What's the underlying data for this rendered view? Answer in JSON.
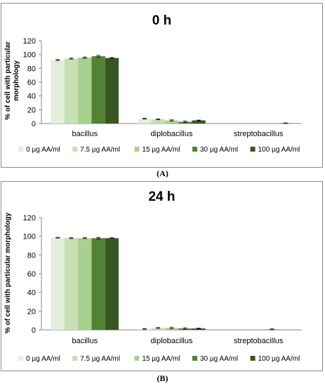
{
  "chart_data": [
    {
      "type": "bar",
      "title": "0 h",
      "ylabel": "% of cell with particular morphology",
      "xlabel": "",
      "categories": [
        "bacillus",
        "diplobacillus",
        "streptobacillus"
      ],
      "ylim": [
        0,
        120
      ],
      "yticks": [
        0,
        20,
        40,
        60,
        80,
        100,
        120
      ],
      "series": [
        {
          "name": "0 µg AA/ml",
          "values": [
            92,
            7,
            0
          ],
          "errors": [
            0.8,
            0.6,
            0
          ],
          "color": "#e2efda"
        },
        {
          "name": "7.5 µg AA/ml",
          "values": [
            94,
            6,
            0
          ],
          "errors": [
            0.8,
            0.6,
            0
          ],
          "color": "#c6e0b4"
        },
        {
          "name": "15 µg AA/ml",
          "values": [
            95.5,
            4.5,
            0
          ],
          "errors": [
            0.9,
            0.8,
            0
          ],
          "color": "#a9d08e"
        },
        {
          "name": "30 µg AA/ml",
          "values": [
            97.5,
            2.5,
            0
          ],
          "errors": [
            1.2,
            1.2,
            0
          ],
          "color": "#548235"
        },
        {
          "name": "100 µg AA/ml",
          "values": [
            95,
            4.5,
            0.5
          ],
          "errors": [
            0.6,
            0.5,
            0.3
          ],
          "color": "#375623"
        }
      ],
      "grid": false,
      "legend_position": "bottom",
      "panel_label": "(A)"
    },
    {
      "type": "bar",
      "title": "24 h",
      "ylabel": "% of cell with particular morphology",
      "xlabel": "",
      "categories": [
        "bacillus",
        "diplobacillus",
        "streptobacillus"
      ],
      "ylim": [
        0,
        120
      ],
      "yticks": [
        0,
        20,
        40,
        60,
        80,
        100,
        120
      ],
      "series": [
        {
          "name": "0 µg AA/ml",
          "values": [
            98.5,
            1,
            0
          ],
          "errors": [
            0.4,
            0.4,
            0
          ],
          "color": "#e2efda"
        },
        {
          "name": "7.5 µg AA/ml",
          "values": [
            98,
            2,
            0
          ],
          "errors": [
            0.4,
            0.4,
            0
          ],
          "color": "#c6e0b4"
        },
        {
          "name": "15 µg AA/ml",
          "values": [
            98,
            2,
            0
          ],
          "errors": [
            0.5,
            0.8,
            0
          ],
          "color": "#a9d08e"
        },
        {
          "name": "30 µg AA/ml",
          "values": [
            98,
            1.5,
            0.5
          ],
          "errors": [
            0.8,
            0.7,
            0.5
          ],
          "color": "#548235"
        },
        {
          "name": "100 µg AA/ml",
          "values": [
            98,
            1.5,
            0
          ],
          "errors": [
            0.4,
            0.4,
            0
          ],
          "color": "#375623"
        }
      ],
      "grid": false,
      "legend_position": "bottom",
      "panel_label": "(B)"
    }
  ]
}
